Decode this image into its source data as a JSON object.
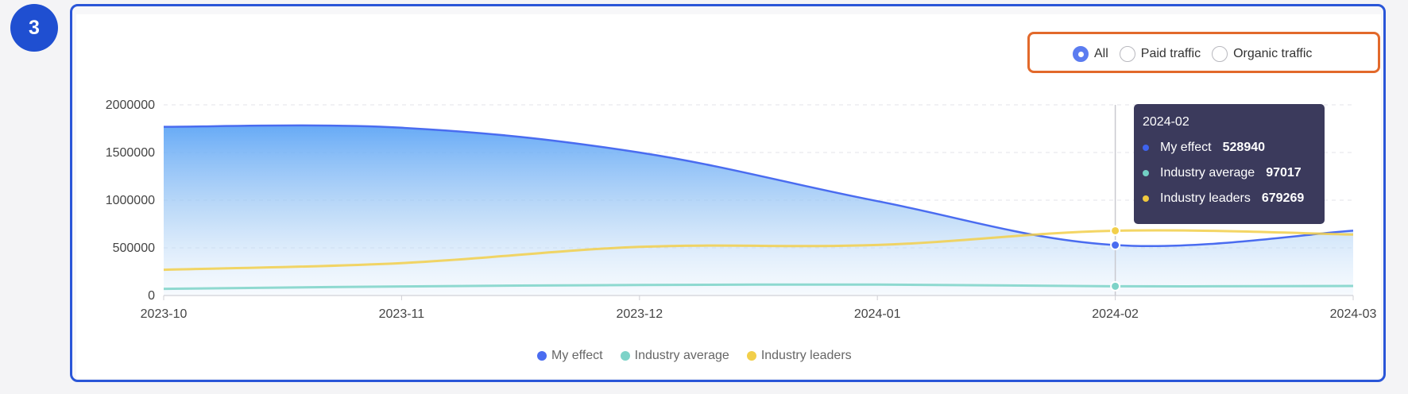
{
  "step_number": "3",
  "filters": {
    "options": [
      "All",
      "Paid traffic",
      "Organic traffic"
    ],
    "selected_index": 0
  },
  "colors": {
    "my_effect": "#4a6cf0",
    "industry_average": "#7dd3c8",
    "industry_leaders": "#f2cf4a",
    "tooltip_bg": "#3b3a5c",
    "filter_border": "#e2692b",
    "frame_border": "#2a56d8"
  },
  "tooltip": {
    "title": "2024-02",
    "rows": [
      {
        "label": "My effect",
        "value": "528940",
        "color": "#3e63ee"
      },
      {
        "label": "Industry average",
        "value": "97017",
        "color": "#72d0c4"
      },
      {
        "label": "Industry leaders",
        "value": "679269",
        "color": "#f0c93e"
      }
    ]
  },
  "chart_data": {
    "type": "area",
    "categories": [
      "2023-10",
      "2023-11",
      "2023-12",
      "2024-01",
      "2024-02",
      "2024-03"
    ],
    "series": [
      {
        "name": "My effect",
        "values": [
          1770000,
          1760000,
          1500000,
          990000,
          528940,
          680000
        ],
        "style": "area",
        "color": "#4a6cf0"
      },
      {
        "name": "Industry average",
        "values": [
          70000,
          95000,
          110000,
          115000,
          97017,
          100000
        ],
        "style": "line",
        "color": "#7dd3c8"
      },
      {
        "name": "Industry leaders",
        "values": [
          270000,
          340000,
          510000,
          530000,
          679269,
          640000
        ],
        "style": "line",
        "color": "#f2cf4a"
      }
    ],
    "y_ticks": [
      "0",
      "500000",
      "1000000",
      "1500000",
      "2000000"
    ],
    "ylim": [
      0,
      2000000
    ],
    "highlight_category": "2024-02",
    "grid": true,
    "legend_position": "bottom-center"
  }
}
